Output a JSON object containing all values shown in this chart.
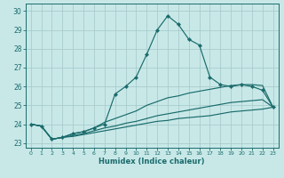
{
  "xlabel": "Humidex (Indice chaleur)",
  "xlim": [
    -0.5,
    23.5
  ],
  "ylim": [
    22.75,
    30.4
  ],
  "yticks": [
    23,
    24,
    25,
    26,
    27,
    28,
    29,
    30
  ],
  "xticks": [
    0,
    1,
    2,
    3,
    4,
    5,
    6,
    7,
    8,
    9,
    10,
    11,
    12,
    13,
    14,
    15,
    16,
    17,
    18,
    19,
    20,
    21,
    22,
    23
  ],
  "bg_color": "#c8e8e8",
  "grid_color": "#a8cccc",
  "line_color": "#1a6b6b",
  "line1_x": [
    0,
    1,
    2,
    3,
    4,
    5,
    6,
    7,
    8,
    9,
    10,
    11,
    12,
    13,
    14,
    15,
    16,
    17,
    18,
    19,
    20,
    21,
    22,
    23
  ],
  "line1_y": [
    24.0,
    23.9,
    23.2,
    23.3,
    23.5,
    23.6,
    23.8,
    24.0,
    25.6,
    26.0,
    26.5,
    27.7,
    29.0,
    29.75,
    29.3,
    28.5,
    28.2,
    26.5,
    26.1,
    26.0,
    26.1,
    26.0,
    25.8,
    24.9
  ],
  "line2_x": [
    0,
    1,
    2,
    3,
    4,
    5,
    6,
    7,
    8,
    9,
    10,
    11,
    12,
    13,
    14,
    15,
    16,
    17,
    18,
    19,
    20,
    21,
    22,
    23
  ],
  "line2_y": [
    24.0,
    23.9,
    23.2,
    23.3,
    23.5,
    23.6,
    23.8,
    24.1,
    24.3,
    24.5,
    24.7,
    25.0,
    25.2,
    25.4,
    25.5,
    25.65,
    25.75,
    25.85,
    25.95,
    26.05,
    26.1,
    26.1,
    26.05,
    24.9
  ],
  "line3_x": [
    0,
    1,
    2,
    3,
    4,
    5,
    6,
    7,
    8,
    9,
    10,
    11,
    12,
    13,
    14,
    15,
    16,
    17,
    18,
    19,
    20,
    21,
    22,
    23
  ],
  "line3_y": [
    24.0,
    23.9,
    23.2,
    23.3,
    23.4,
    23.5,
    23.65,
    23.8,
    23.9,
    24.05,
    24.15,
    24.3,
    24.45,
    24.55,
    24.65,
    24.75,
    24.85,
    24.95,
    25.05,
    25.15,
    25.2,
    25.25,
    25.3,
    24.9
  ],
  "line4_x": [
    0,
    1,
    2,
    3,
    4,
    5,
    6,
    7,
    8,
    9,
    10,
    11,
    12,
    13,
    14,
    15,
    16,
    17,
    18,
    19,
    20,
    21,
    22,
    23
  ],
  "line4_y": [
    24.0,
    23.9,
    23.2,
    23.3,
    23.35,
    23.45,
    23.55,
    23.65,
    23.75,
    23.85,
    23.95,
    24.05,
    24.15,
    24.2,
    24.3,
    24.35,
    24.4,
    24.45,
    24.55,
    24.65,
    24.7,
    24.75,
    24.8,
    24.9
  ]
}
